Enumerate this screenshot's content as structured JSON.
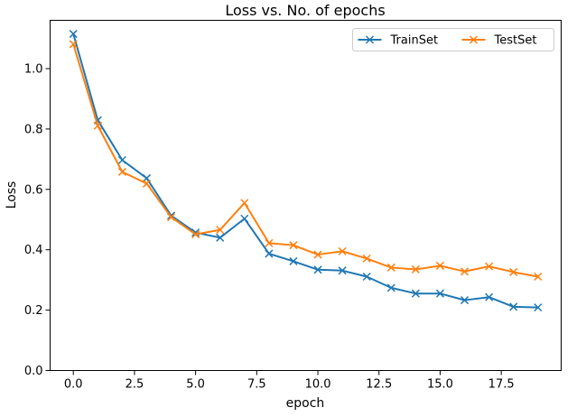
{
  "chart_data": {
    "type": "line",
    "title": "Loss vs. No. of epochs",
    "xlabel": "epoch",
    "ylabel": "Loss",
    "xlim": [
      -0.95,
      19.95
    ],
    "ylim": [
      0.0,
      1.16
    ],
    "xticks": [
      0.0,
      2.5,
      5.0,
      7.5,
      10.0,
      12.5,
      15.0,
      17.5
    ],
    "xtick_labels": [
      "0.0",
      "2.5",
      "5.0",
      "7.5",
      "10.0",
      "12.5",
      "15.0",
      "17.5"
    ],
    "yticks": [
      0.0,
      0.2,
      0.4,
      0.6,
      0.8,
      1.0
    ],
    "ytick_labels": [
      "0.0",
      "0.2",
      "0.4",
      "0.6",
      "0.8",
      "1.0"
    ],
    "grid": false,
    "legend_position": "top-right",
    "x": [
      0,
      1,
      2,
      3,
      4,
      5,
      6,
      7,
      8,
      9,
      10,
      11,
      12,
      13,
      14,
      15,
      16,
      17,
      18,
      19
    ],
    "series": [
      {
        "name": "TrainSet",
        "color": "#1f77b4",
        "marker": "x",
        "values": [
          1.115,
          0.829,
          0.697,
          0.637,
          0.513,
          0.457,
          0.44,
          0.503,
          0.387,
          0.362,
          0.334,
          0.331,
          0.311,
          0.274,
          0.255,
          0.255,
          0.233,
          0.243,
          0.211,
          0.209
        ]
      },
      {
        "name": "TestSet",
        "color": "#ff7f0e",
        "marker": "x",
        "values": [
          1.081,
          0.811,
          0.658,
          0.619,
          0.508,
          0.451,
          0.466,
          0.555,
          0.422,
          0.415,
          0.384,
          0.395,
          0.371,
          0.341,
          0.335,
          0.347,
          0.328,
          0.345,
          0.326,
          0.311
        ]
      }
    ]
  }
}
